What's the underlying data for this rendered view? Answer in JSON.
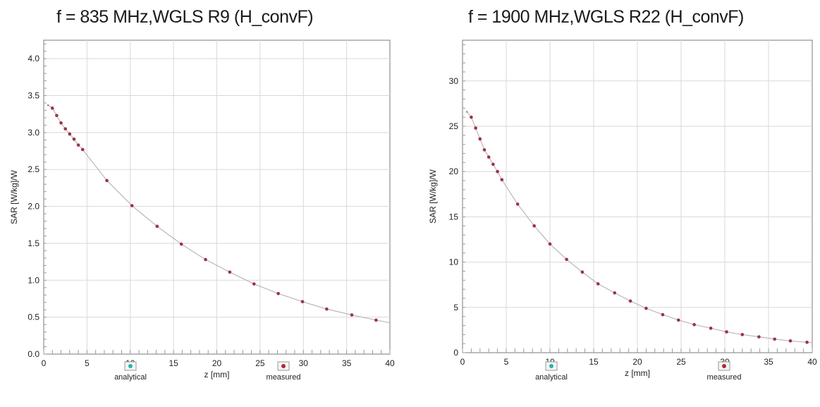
{
  "chart_data": [
    {
      "type": "scatter",
      "title": "f = 835 MHz,WGLS R9 (H_convF)",
      "xlabel": "z [mm]",
      "ylabel": "SAR [W/kg]/W",
      "xlim": [
        0,
        40
      ],
      "ylim": [
        0,
        4.25
      ],
      "x_ticks": [
        "0",
        "5",
        "10",
        "15",
        "20",
        "25",
        "30",
        "35",
        "40"
      ],
      "y_ticks": [
        "0.0",
        "0.5",
        "1.0",
        "1.5",
        "2.0",
        "2.5",
        "3.0",
        "3.5",
        "4.0"
      ],
      "grid": true,
      "legend": [
        "analytical",
        "measured"
      ],
      "legend_position": "bottom",
      "colors": {
        "analytical": "#2bb3a6",
        "measured": "#b0283a",
        "curve": "#b8b8b8"
      },
      "series": [
        {
          "name": "analytical",
          "x": [
            0.5,
            1.0,
            1.5,
            2.0,
            2.5,
            3.0,
            3.5,
            4.0,
            4.5,
            7.3,
            10.2,
            13.1,
            15.9,
            18.7,
            21.5,
            24.3,
            27.1,
            29.9,
            32.7,
            35.6,
            38.4
          ],
          "y": [
            3.37,
            3.33,
            3.23,
            3.13,
            3.05,
            2.98,
            2.91,
            2.83,
            2.77,
            2.35,
            2.01,
            1.73,
            1.49,
            1.28,
            1.11,
            0.95,
            0.82,
            0.71,
            0.61,
            0.53,
            0.46
          ]
        },
        {
          "name": "measured",
          "x": [
            1.0,
            1.5,
            2.0,
            2.5,
            3.0,
            3.5,
            4.0,
            4.5,
            7.3,
            10.2,
            13.1,
            15.9,
            18.7,
            21.5,
            24.3,
            27.1,
            29.9,
            32.7,
            35.6,
            38.4
          ],
          "y": [
            3.33,
            3.23,
            3.13,
            3.05,
            2.98,
            2.91,
            2.83,
            2.77,
            2.35,
            2.01,
            1.73,
            1.49,
            1.28,
            1.11,
            0.95,
            0.82,
            0.71,
            0.61,
            0.53,
            0.46
          ]
        }
      ]
    },
    {
      "type": "scatter",
      "title": "f = 1900 MHz,WGLS R22 (H_convF)",
      "xlabel": "z [mm]",
      "ylabel": "SAR [W/kg]/W",
      "xlim": [
        0,
        40
      ],
      "ylim": [
        0,
        34.5
      ],
      "x_ticks": [
        "0",
        "5",
        "10",
        "15",
        "20",
        "25",
        "30",
        "35",
        "40"
      ],
      "y_ticks": [
        "0",
        "5",
        "10",
        "15",
        "20",
        "25",
        "30"
      ],
      "grid": true,
      "legend": [
        "analytical",
        "measured"
      ],
      "legend_position": "bottom",
      "colors": {
        "analytical": "#2bb3a6",
        "measured": "#b0283a",
        "curve": "#b8b8b8"
      },
      "series": [
        {
          "name": "analytical",
          "x": [
            0.5,
            1.0,
            1.5,
            2.0,
            2.5,
            3.0,
            3.5,
            4.0,
            4.5,
            6.3,
            8.2,
            10.0,
            11.9,
            13.7,
            15.5,
            17.4,
            19.2,
            21.0,
            22.9,
            24.7,
            26.5,
            28.4,
            30.2,
            32.0,
            33.9,
            35.7,
            37.5,
            39.4
          ],
          "y": [
            26.6,
            26.0,
            24.8,
            23.6,
            22.4,
            21.6,
            20.8,
            20.0,
            19.1,
            16.4,
            14.0,
            12.0,
            10.3,
            8.9,
            7.6,
            6.6,
            5.7,
            4.9,
            4.2,
            3.6,
            3.1,
            2.7,
            2.3,
            2.0,
            1.75,
            1.5,
            1.3,
            1.15
          ]
        },
        {
          "name": "measured",
          "x": [
            1.0,
            1.5,
            2.0,
            2.5,
            3.0,
            3.5,
            4.0,
            4.5,
            6.3,
            8.2,
            10.0,
            11.9,
            13.7,
            15.5,
            17.4,
            19.2,
            21.0,
            22.9,
            24.7,
            26.5,
            28.4,
            30.2,
            32.0,
            33.9,
            35.7,
            37.5,
            39.4
          ],
          "y": [
            26.0,
            24.8,
            23.6,
            22.4,
            21.6,
            20.8,
            20.0,
            19.1,
            16.4,
            14.0,
            12.0,
            10.3,
            8.9,
            7.6,
            6.6,
            5.7,
            4.9,
            4.2,
            3.6,
            3.1,
            2.7,
            2.3,
            2.0,
            1.75,
            1.5,
            1.3,
            1.15
          ]
        }
      ]
    }
  ]
}
